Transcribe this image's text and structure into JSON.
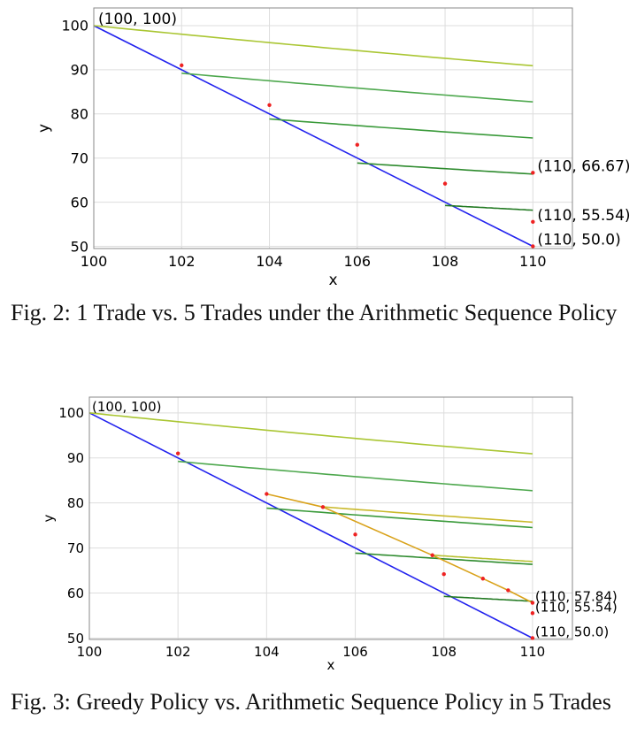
{
  "chart_data": [
    {
      "type": "line",
      "xlabel": "x",
      "ylabel": "y",
      "xlim": [
        100,
        110.9
      ],
      "ylim": [
        49.5,
        104
      ],
      "xticks": [
        100,
        102,
        104,
        106,
        108,
        110
      ],
      "yticks": [
        50,
        60,
        70,
        80,
        90,
        100
      ],
      "grid": true,
      "series": [
        {
          "color": "#2222ee",
          "points": [
            [
              100,
              100
            ],
            [
              110,
              50
            ]
          ]
        },
        {
          "color": "#aac633",
          "curve_k": 10000,
          "from": 100,
          "to": 110
        },
        {
          "color": "#4ea84e",
          "curve_k": 9100,
          "from": 102,
          "to": 110
        },
        {
          "color": "#3a9a3a",
          "curve_k": 8200,
          "from": 104,
          "to": 110
        },
        {
          "color": "#2e8b2e",
          "curve_k": 7300,
          "from": 106,
          "to": 110
        },
        {
          "color": "#237a23",
          "curve_k": 6400,
          "from": 108,
          "to": 110
        }
      ],
      "markers": [
        [
          102,
          91
        ],
        [
          104,
          82
        ],
        [
          106,
          73
        ],
        [
          108,
          64.2
        ],
        [
          110,
          66.67
        ],
        [
          110,
          55.54
        ],
        [
          110,
          50.0
        ]
      ],
      "annotations": [
        {
          "text": "(100, 100)",
          "x": 100,
          "y": 100
        },
        {
          "text": "(110, 66.67)",
          "x": 110,
          "y": 66.67
        },
        {
          "text": "(110, 55.54)",
          "x": 110,
          "y": 55.54
        },
        {
          "text": "(110, 50.0)",
          "x": 110,
          "y": 50.0
        }
      ]
    },
    {
      "type": "line",
      "xlabel": "x",
      "ylabel": "y",
      "xlim": [
        100,
        110.9
      ],
      "ylim": [
        49.7,
        103.5
      ],
      "xticks": [
        100,
        102,
        104,
        106,
        108,
        110
      ],
      "yticks": [
        50,
        60,
        70,
        80,
        90,
        100
      ],
      "grid": true,
      "series": [
        {
          "color": "#2222ee",
          "points": [
            [
              100,
              100
            ],
            [
              110,
              50
            ]
          ]
        },
        {
          "color": "#aac633",
          "curve_k": 10000,
          "from": 100,
          "to": 110
        },
        {
          "color": "#4ea84e",
          "curve_k": 9100,
          "from": 102,
          "to": 110
        },
        {
          "color": "#3a9a3a",
          "curve_k": 8200,
          "from": 104,
          "to": 110
        },
        {
          "color": "#2e8b2e",
          "curve_k": 7300,
          "from": 106,
          "to": 110
        },
        {
          "color": "#237a23",
          "curve_k": 6400,
          "from": 108,
          "to": 110
        },
        {
          "color": "#d9a21a",
          "points": [
            [
              104,
              82
            ],
            [
              105.27,
              79.1
            ],
            [
              107.74,
              68.4
            ],
            [
              108.88,
              63.2
            ],
            [
              109.45,
              60.6
            ],
            [
              110,
              57.84
            ]
          ]
        },
        {
          "color": "#c9b92a",
          "curve_k": 8330,
          "from": 105.27,
          "to": 110
        },
        {
          "color": "#b7c030",
          "curve_k": 7370,
          "from": 107.74,
          "to": 110
        }
      ],
      "markers": [
        [
          102,
          91
        ],
        [
          104,
          82
        ],
        [
          105.27,
          79.1
        ],
        [
          106,
          73
        ],
        [
          107.74,
          68.4
        ],
        [
          108,
          64.2
        ],
        [
          108.88,
          63.2
        ],
        [
          109.45,
          60.6
        ],
        [
          110,
          57.84
        ],
        [
          110,
          55.54
        ],
        [
          110,
          50.0
        ]
      ],
      "annotations": [
        {
          "text": "(100, 100)",
          "x": 100,
          "y": 100
        },
        {
          "text": "(110, 57.84)",
          "x": 110,
          "y": 57.84
        },
        {
          "text": "(110, 55.54)",
          "x": 110,
          "y": 55.54
        },
        {
          "text": "(110, 50.0)",
          "x": 110,
          "y": 50.0
        }
      ]
    }
  ],
  "captions": {
    "fig2": "Fig. 2: 1 Trade vs. 5 Trades under the Arithmetic Sequence Policy",
    "fig3": "Fig. 3: Greedy Policy vs. Arithmetic Sequence Policy in 5 Trades"
  }
}
